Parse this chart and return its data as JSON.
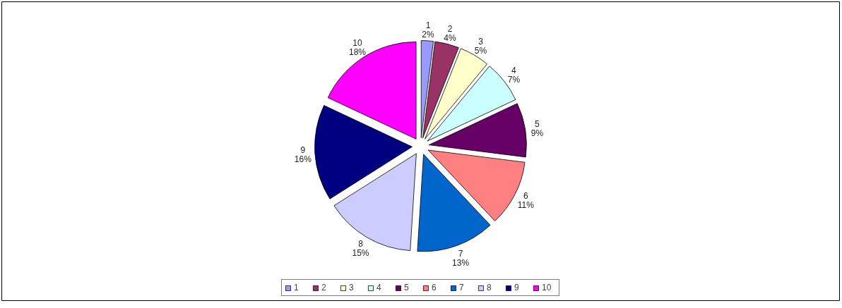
{
  "chart_data": {
    "type": "pie",
    "categories": [
      "1",
      "2",
      "3",
      "4",
      "5",
      "6",
      "7",
      "8",
      "9",
      "10"
    ],
    "values": [
      2,
      4,
      5,
      7,
      9,
      11,
      13,
      15,
      16,
      18
    ],
    "colors": [
      "#9999ff",
      "#993366",
      "#ffffcc",
      "#ccffff",
      "#660066",
      "#ff8080",
      "#0066cc",
      "#ccccff",
      "#000080",
      "#ff00ff"
    ],
    "value_labels": [
      "2%",
      "4%",
      "5%",
      "7%",
      "9%",
      "11%",
      "13%",
      "15%",
      "16%",
      "18%"
    ],
    "legend": "bottom"
  }
}
